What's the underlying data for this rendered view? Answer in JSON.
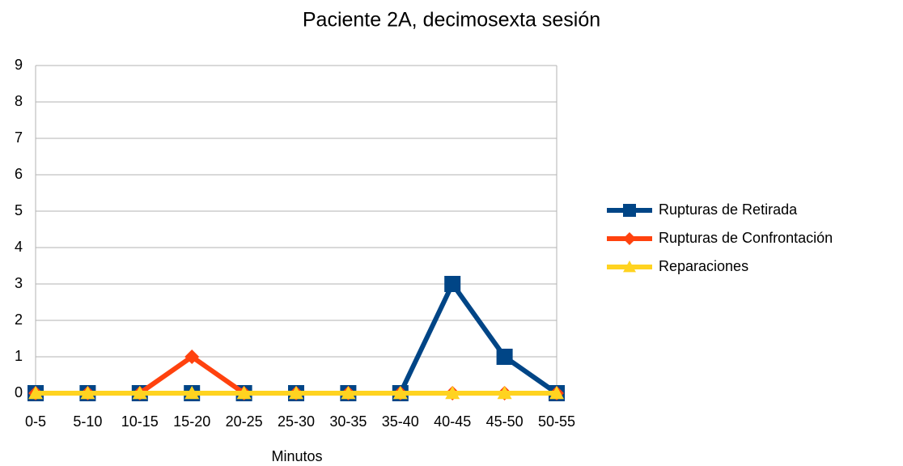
{
  "chart_data": {
    "type": "line",
    "title": "Paciente 2A, decimosexta sesión",
    "x_label": "Minutos",
    "categories": [
      "0-5",
      "5-10",
      "10-15",
      "15-20",
      "20-25",
      "25-30",
      "30-35",
      "35-40",
      "40-45",
      "45-50",
      "50-55"
    ],
    "series": [
      {
        "name": "Rupturas de Retirada",
        "color": "#004586",
        "marker": "square",
        "values": [
          0,
          0,
          0,
          0,
          0,
          0,
          0,
          0,
          3,
          1,
          0
        ]
      },
      {
        "name": "Rupturas de Confrontación",
        "color": "#ff420e",
        "marker": "diamond",
        "values": [
          0,
          0,
          0,
          1,
          0,
          0,
          0,
          0,
          0,
          0,
          0
        ]
      },
      {
        "name": "Reparaciones",
        "color": "#ffd320",
        "marker": "triangle",
        "values": [
          0,
          0,
          0,
          0,
          0,
          0,
          0,
          0,
          0,
          0,
          0
        ]
      }
    ],
    "ylim": [
      0,
      9
    ],
    "yticks": [
      0,
      1,
      2,
      3,
      4,
      5,
      6,
      7,
      8,
      9
    ],
    "grid": true,
    "legend": "right"
  }
}
